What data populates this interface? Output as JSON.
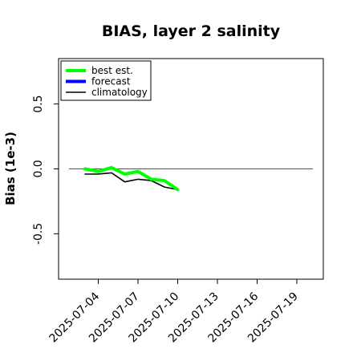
{
  "chart_data": {
    "type": "line",
    "title": "BIAS, layer 2 salinity",
    "xlabel": "",
    "ylabel": "Bias (1e-3)",
    "x_ticks": [
      "2025-07-04",
      "2025-07-07",
      "2025-07-10",
      "2025-07-13",
      "2025-07-16",
      "2025-07-19"
    ],
    "highlighted_tick": "2025-07-10",
    "highlight_color": "#228B22",
    "xlim": [
      "2025-07-01",
      "2025-07-21"
    ],
    "y_ticks": [
      "0.5",
      "0.0",
      "-0.5"
    ],
    "ylim": [
      -0.85,
      0.85
    ],
    "reference_line": 0,
    "legend_position": "top-left",
    "series": [
      {
        "name": "best est.",
        "color": "#00ff00",
        "x": [
          "2025-07-03",
          "2025-07-04",
          "2025-07-05",
          "2025-07-06",
          "2025-07-07",
          "2025-07-08",
          "2025-07-09",
          "2025-07-10"
        ],
        "values": [
          0.0,
          -0.02,
          0.01,
          -0.04,
          -0.02,
          -0.08,
          -0.09,
          -0.16
        ]
      },
      {
        "name": "forecast",
        "color": "#0000ff",
        "x": [],
        "values": []
      },
      {
        "name": "climatology",
        "color": "#000000",
        "x": [
          "2025-07-03",
          "2025-07-04",
          "2025-07-05",
          "2025-07-06",
          "2025-07-07",
          "2025-07-08",
          "2025-07-09",
          "2025-07-10"
        ],
        "values": [
          -0.04,
          -0.04,
          -0.03,
          -0.1,
          -0.08,
          -0.09,
          -0.14,
          -0.16
        ]
      }
    ]
  }
}
